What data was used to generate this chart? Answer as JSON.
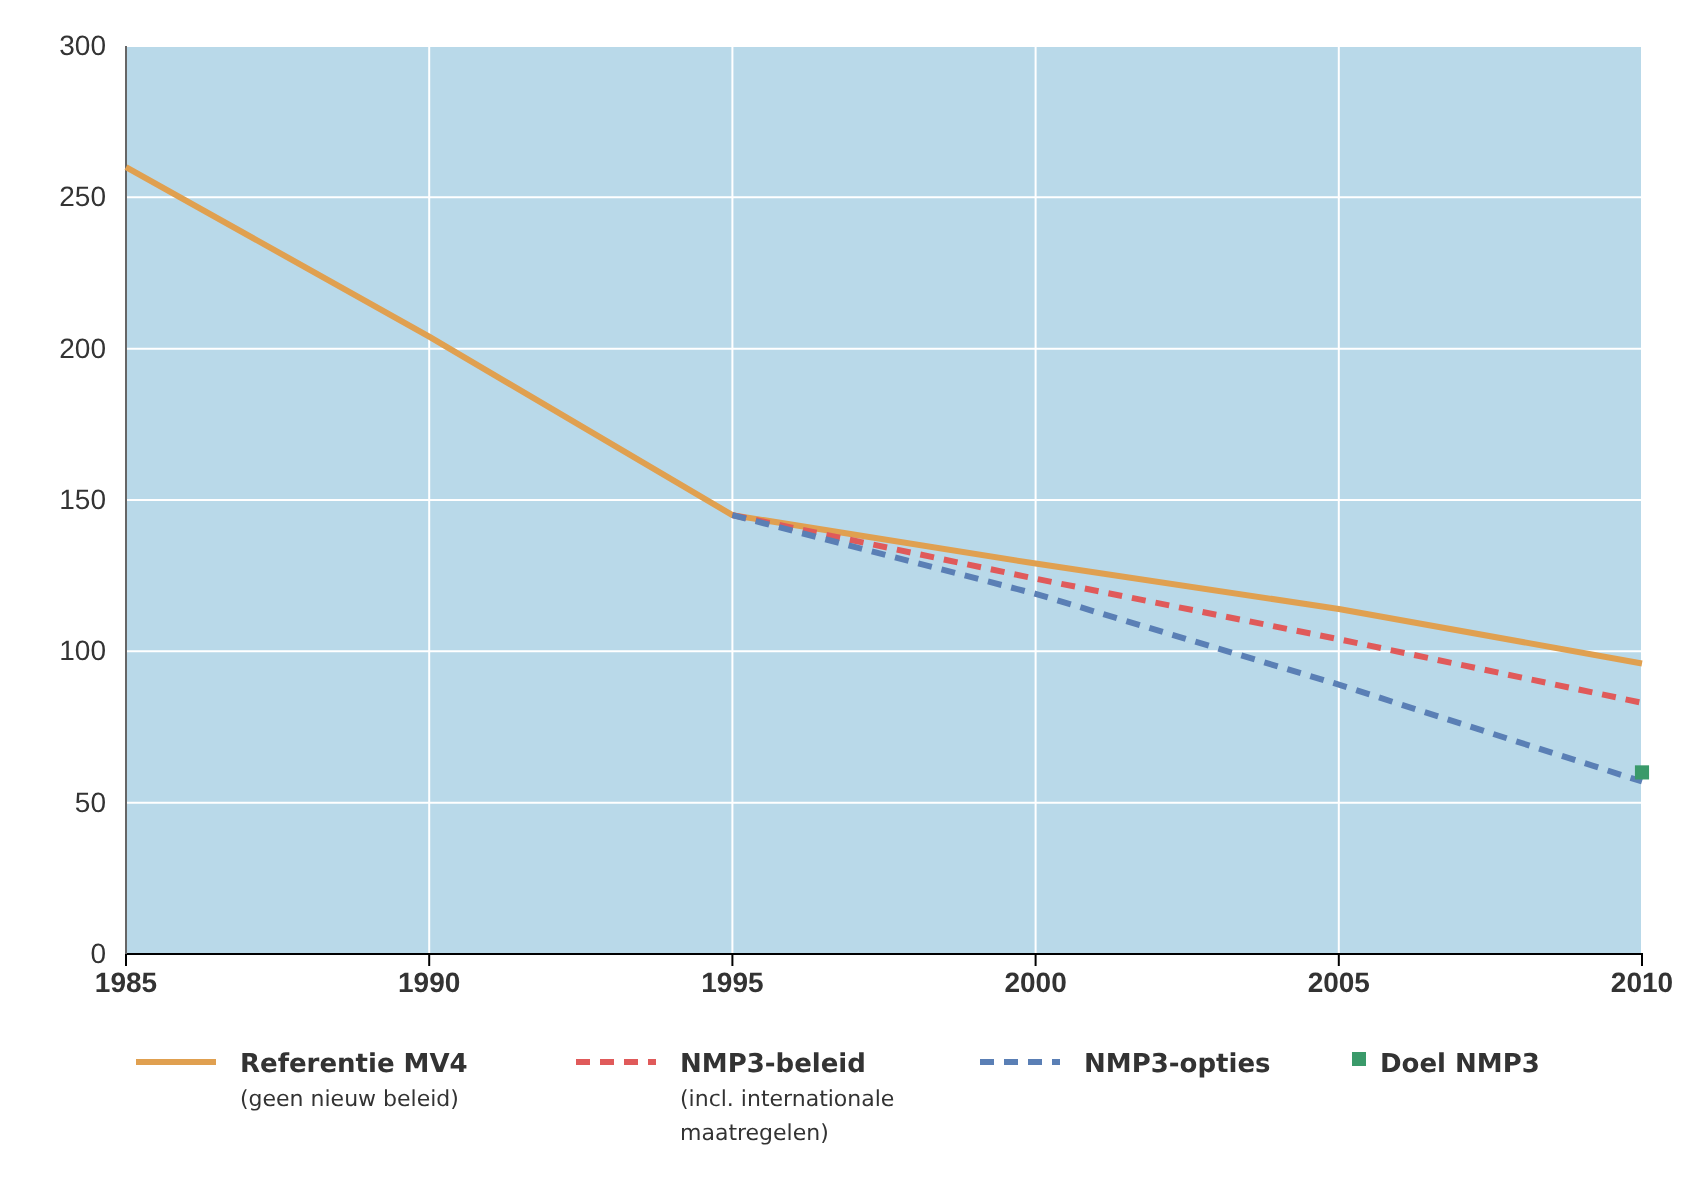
{
  "chart_data": {
    "type": "line",
    "x": [
      1985,
      1990,
      1995,
      2000,
      2005,
      2010
    ],
    "series": [
      {
        "name": "Referentie MV4 (geen nieuw beleid)",
        "color": "#e0a050",
        "line_style": "solid",
        "marker": "none",
        "values": [
          260,
          204,
          145,
          129,
          114,
          96
        ]
      },
      {
        "name": "NMP3-beleid (incl. internationale maatregelen)",
        "color": "#e05a5a",
        "line_style": "dashed",
        "marker": "none",
        "values": [
          null,
          null,
          145,
          124,
          104,
          83
        ]
      },
      {
        "name": "NMP3-opties",
        "color": "#5a7fb5",
        "line_style": "dashed",
        "marker": "none",
        "values": [
          null,
          null,
          145,
          119,
          89,
          57
        ]
      },
      {
        "name": "Doel NMP3",
        "type": "scatter",
        "color": "#3a9a6a",
        "marker": "square",
        "x": [
          2010
        ],
        "values": [
          60
        ]
      }
    ],
    "xlim": [
      1985,
      2010
    ],
    "xticks": [
      1985,
      1990,
      1995,
      2000,
      2005,
      2010
    ],
    "ylim": [
      0,
      300
    ],
    "yticks": [
      0,
      50,
      100,
      150,
      200,
      250,
      300
    ],
    "grid": true,
    "legend": "bottom"
  }
}
